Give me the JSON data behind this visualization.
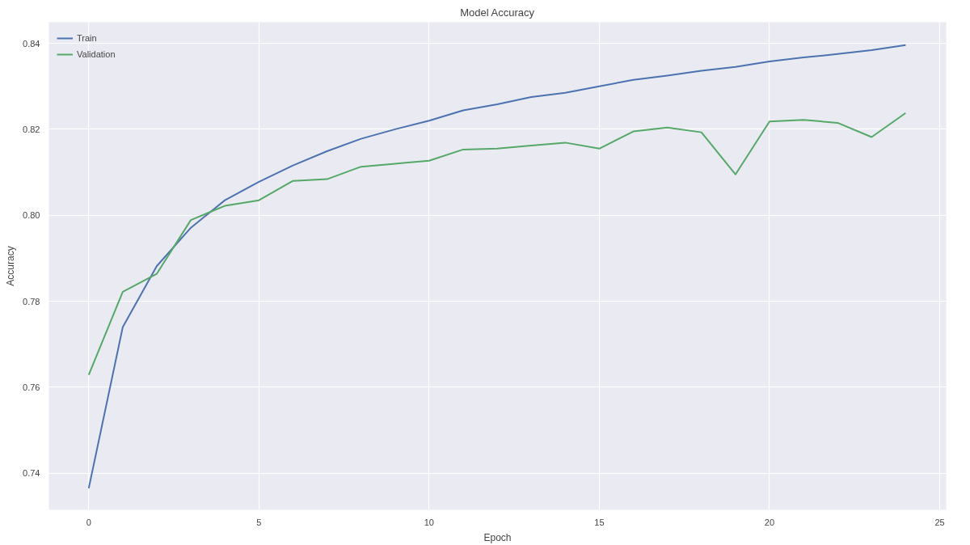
{
  "chart_data": {
    "type": "line",
    "title": "Model Accuracy",
    "xlabel": "Epoch",
    "ylabel": "Accuracy",
    "x": [
      0,
      1,
      2,
      3,
      4,
      5,
      6,
      7,
      8,
      9,
      10,
      11,
      12,
      13,
      14,
      15,
      16,
      17,
      18,
      19,
      20,
      21,
      22,
      23,
      24
    ],
    "series": [
      {
        "name": "Train",
        "color": "#4c72b0",
        "values": [
          0.7365,
          0.774,
          0.7882,
          0.7971,
          0.8035,
          0.8078,
          0.8116,
          0.8149,
          0.8178,
          0.82,
          0.822,
          0.8244,
          0.8258,
          0.8275,
          0.8285,
          0.83,
          0.8315,
          0.8325,
          0.8336,
          0.8345,
          0.8358,
          0.8367,
          0.8375,
          0.8384,
          0.8396
        ]
      },
      {
        "name": "Validation",
        "color": "#55a868",
        "values": [
          0.7629,
          0.7822,
          0.7864,
          0.7989,
          0.8022,
          0.8035,
          0.808,
          0.8084,
          0.8113,
          0.812,
          0.8127,
          0.8153,
          0.8155,
          0.8162,
          0.8169,
          0.8155,
          0.8195,
          0.8204,
          0.8193,
          0.8095,
          0.8218,
          0.8222,
          0.8215,
          0.8182,
          0.8238
        ]
      }
    ],
    "xlim": [
      -1.17,
      25.19
    ],
    "ylim": [
      0.7315,
      0.8449
    ],
    "xticks": [
      0,
      5,
      10,
      15,
      20,
      25
    ],
    "yticks": [
      0.74,
      0.76,
      0.78,
      {
        "value": 0.8,
        "label": "0.80"
      },
      0.82,
      0.84
    ],
    "grid": true,
    "legend": "top left"
  }
}
